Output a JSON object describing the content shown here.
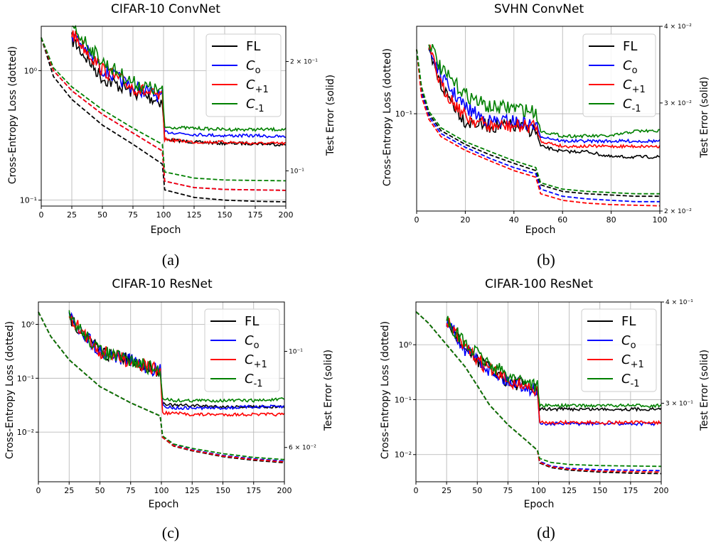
{
  "figure": {
    "panels": [
      {
        "id": "a",
        "caption": "(a)",
        "title": "CIFAR-10 ConvNet",
        "xlabel": "Epoch",
        "ylabel_left": "Cross-Entropy Loss (dotted)",
        "ylabel_right": "Test Error (solid)",
        "legend": [
          "FL",
          "C_o",
          "C_+1",
          "C_-1"
        ],
        "left_ticks": [
          {
            "label": "10⁰",
            "value": 1
          },
          {
            "label": "10⁻¹",
            "value": 0.1
          }
        ],
        "right_ticks": [
          {
            "label": "2 × 10⁻¹",
            "value": 0.2
          },
          {
            "label": "10⁻¹",
            "value": 0.1
          }
        ],
        "x_ticks": [
          "0",
          "25",
          "50",
          "75",
          "100",
          "125",
          "150",
          "175",
          "200"
        ]
      },
      {
        "id": "b",
        "caption": "(b)",
        "title": "SVHN ConvNet",
        "xlabel": "Epoch",
        "ylabel_left": "Cross-Entropy Loss (dotted)",
        "ylabel_right": "Test Error (solid)",
        "legend": [
          "FL",
          "C_o",
          "C_+1",
          "C_-1"
        ],
        "left_ticks": [
          {
            "label": "10⁻¹",
            "value": 0.1
          }
        ],
        "right_ticks": [
          {
            "label": "4 × 10⁻²",
            "value": 0.04
          },
          {
            "label": "3 × 10⁻²",
            "value": 0.03
          },
          {
            "label": "2 × 10⁻²",
            "value": 0.02
          }
        ],
        "x_ticks": [
          "0",
          "20",
          "40",
          "60",
          "80",
          "100"
        ]
      },
      {
        "id": "c",
        "caption": "(c)",
        "title": "CIFAR-10 ResNet",
        "xlabel": "Epoch",
        "ylabel_left": "Cross-Entropy Loss (dotted)",
        "ylabel_right": "Test Error (solid)",
        "legend": [
          "FL",
          "C_o",
          "C_+1",
          "C_-1"
        ],
        "left_ticks": [
          {
            "label": "10⁰",
            "value": 1
          },
          {
            "label": "10⁻¹",
            "value": 0.1
          },
          {
            "label": "10⁻²",
            "value": 0.01
          }
        ],
        "right_ticks": [
          {
            "label": "10⁻¹",
            "value": 0.1
          },
          {
            "label": "6 × 10⁻²",
            "value": 0.06
          }
        ],
        "x_ticks": [
          "0",
          "25",
          "50",
          "75",
          "100",
          "125",
          "150",
          "175",
          "200"
        ]
      },
      {
        "id": "d",
        "caption": "(d)",
        "title": "CIFAR-100 ResNet",
        "xlabel": "Epoch",
        "ylabel_left": "Cross-Entropy Loss (dotted)",
        "ylabel_right": "Test Error (solid)",
        "legend": [
          "FL",
          "C_o",
          "C_+1",
          "C_-1"
        ],
        "left_ticks": [
          {
            "label": "10⁰",
            "value": 1
          },
          {
            "label": "10⁻¹",
            "value": 0.1
          },
          {
            "label": "10⁻²",
            "value": 0.01
          }
        ],
        "right_ticks": [
          {
            "label": "4 × 10⁻¹",
            "value": 0.4
          },
          {
            "label": "3 × 10⁻¹",
            "value": 0.3
          }
        ],
        "x_ticks": [
          "0",
          "25",
          "50",
          "75",
          "100",
          "125",
          "150",
          "175",
          "200"
        ]
      }
    ]
  },
  "chart_data": [
    {
      "type": "line",
      "title": "CIFAR-10 ConvNet",
      "xlabel": "Epoch",
      "ylabel": "Cross-Entropy Loss (dotted)",
      "ylabel_right": "Test Error (solid)",
      "xlim": [
        0,
        200
      ],
      "ylim_left": [
        0.09,
        2.2
      ],
      "ylim_right": [
        0.08,
        0.25
      ],
      "yscale": "log",
      "grid": true,
      "legend_position": "top-right",
      "colors": {
        "FL": "#000000",
        "C_o": "#0000ff",
        "C_+1": "#ff0000",
        "C_-1": "#008000"
      },
      "x": [
        0,
        10,
        25,
        50,
        75,
        99,
        101,
        125,
        150,
        175,
        200
      ],
      "series": [
        {
          "name": "FL",
          "style": "dashed",
          "axis": "left",
          "values": [
            1.8,
            0.9,
            0.6,
            0.38,
            0.27,
            0.19,
            0.12,
            0.105,
            0.1,
            0.098,
            0.097
          ]
        },
        {
          "name": "C_o",
          "style": "dashed",
          "axis": "left",
          "values": [
            1.8,
            1.0,
            0.7,
            0.46,
            0.33,
            0.24,
            0.14,
            0.125,
            0.121,
            0.12,
            0.119
          ]
        },
        {
          "name": "C_+1",
          "style": "dashed",
          "axis": "left",
          "values": [
            1.8,
            1.0,
            0.7,
            0.46,
            0.33,
            0.24,
            0.14,
            0.125,
            0.121,
            0.12,
            0.119
          ]
        },
        {
          "name": "C_-1",
          "style": "dashed",
          "axis": "left",
          "values": [
            1.8,
            1.05,
            0.75,
            0.5,
            0.36,
            0.27,
            0.165,
            0.148,
            0.143,
            0.142,
            0.141
          ]
        },
        {
          "name": "FL",
          "style": "solid",
          "axis": "right",
          "values": [
            null,
            null,
            0.23,
            0.18,
            0.165,
            0.155,
            0.122,
            0.12,
            0.119,
            0.119,
            0.118
          ]
        },
        {
          "name": "C_o",
          "style": "solid",
          "axis": "right",
          "values": [
            null,
            null,
            0.24,
            0.19,
            0.17,
            0.16,
            0.128,
            0.126,
            0.125,
            0.125,
            0.124
          ]
        },
        {
          "name": "C_+1",
          "style": "solid",
          "axis": "right",
          "values": [
            null,
            null,
            0.24,
            0.19,
            0.17,
            0.158,
            0.122,
            0.12,
            0.12,
            0.119,
            0.119
          ]
        },
        {
          "name": "C_-1",
          "style": "solid",
          "axis": "right",
          "values": [
            null,
            null,
            0.25,
            0.2,
            0.175,
            0.165,
            0.132,
            0.131,
            0.13,
            0.13,
            0.13
          ]
        }
      ]
    },
    {
      "type": "line",
      "title": "SVHN ConvNet",
      "xlabel": "Epoch",
      "ylabel": "Cross-Entropy Loss (dotted)",
      "ylabel_right": "Test Error (solid)",
      "xlim": [
        0,
        100
      ],
      "ylim_left": [
        0.015,
        0.55
      ],
      "ylim_right": [
        0.02,
        0.04
      ],
      "yscale": "log",
      "grid": true,
      "legend_position": "top-right",
      "colors": {
        "FL": "#000000",
        "C_o": "#0000ff",
        "C_+1": "#ff0000",
        "C_-1": "#008000"
      },
      "x": [
        0,
        2,
        5,
        10,
        20,
        30,
        40,
        49,
        51,
        60,
        70,
        80,
        90,
        100
      ],
      "series": [
        {
          "name": "FL",
          "style": "dashed",
          "axis": "left",
          "values": [
            0.35,
            0.16,
            0.1,
            0.072,
            0.055,
            0.045,
            0.038,
            0.033,
            0.025,
            0.022,
            0.021,
            0.0205,
            0.02,
            0.02
          ]
        },
        {
          "name": "C_o",
          "style": "dashed",
          "axis": "left",
          "values": [
            0.35,
            0.15,
            0.095,
            0.068,
            0.052,
            0.042,
            0.035,
            0.031,
            0.023,
            0.02,
            0.019,
            0.0185,
            0.018,
            0.018
          ]
        },
        {
          "name": "C_+1",
          "style": "dashed",
          "axis": "left",
          "values": [
            0.35,
            0.14,
            0.09,
            0.064,
            0.049,
            0.04,
            0.033,
            0.029,
            0.021,
            0.0185,
            0.0175,
            0.017,
            0.0168,
            0.0166
          ]
        },
        {
          "name": "C_-1",
          "style": "dashed",
          "axis": "left",
          "values": [
            0.35,
            0.17,
            0.105,
            0.076,
            0.058,
            0.048,
            0.04,
            0.035,
            0.026,
            0.023,
            0.022,
            0.0215,
            0.021,
            0.021
          ]
        },
        {
          "name": "FL",
          "style": "solid",
          "axis": "right",
          "values": [
            null,
            null,
            0.036,
            0.032,
            0.028,
            0.0275,
            0.0275,
            0.027,
            0.0255,
            0.025,
            0.025,
            0.0245,
            0.0245,
            0.0245
          ]
        },
        {
          "name": "C_o",
          "style": "solid",
          "axis": "right",
          "values": [
            null,
            null,
            0.037,
            0.033,
            0.0295,
            0.028,
            0.028,
            0.0275,
            0.0265,
            0.026,
            0.026,
            0.026,
            0.026,
            0.026
          ]
        },
        {
          "name": "C_+1",
          "style": "solid",
          "axis": "right",
          "values": [
            null,
            null,
            0.037,
            0.032,
            0.0285,
            0.0275,
            0.0275,
            0.0275,
            0.026,
            0.0255,
            0.0255,
            0.0255,
            0.0255,
            0.0255
          ]
        },
        {
          "name": "C_-1",
          "style": "solid",
          "axis": "right",
          "values": [
            null,
            null,
            0.038,
            0.034,
            0.031,
            0.0295,
            0.0295,
            0.029,
            0.027,
            0.0265,
            0.0265,
            0.0265,
            0.027,
            0.027
          ]
        }
      ]
    },
    {
      "type": "line",
      "title": "CIFAR-10 ResNet",
      "xlabel": "Epoch",
      "ylabel": "Cross-Entropy Loss (dotted)",
      "ylabel_right": "Test Error (solid)",
      "xlim": [
        0,
        200
      ],
      "ylim_left": [
        0.0012,
        2.6
      ],
      "ylim_right": [
        0.05,
        0.13
      ],
      "yscale": "log",
      "grid": true,
      "legend_position": "top-right",
      "colors": {
        "FL": "#000000",
        "C_o": "#0000ff",
        "C_+1": "#ff0000",
        "C_-1": "#008000"
      },
      "x": [
        0,
        10,
        25,
        50,
        75,
        99,
        101,
        110,
        125,
        150,
        175,
        200
      ],
      "series": [
        {
          "name": "FL",
          "style": "dashed",
          "axis": "left",
          "values": [
            1.7,
            0.6,
            0.22,
            0.07,
            0.035,
            0.02,
            0.008,
            0.0055,
            0.0045,
            0.0035,
            0.003,
            0.0027
          ]
        },
        {
          "name": "C_o",
          "style": "dashed",
          "axis": "left",
          "values": [
            1.7,
            0.6,
            0.22,
            0.07,
            0.035,
            0.02,
            0.008,
            0.0057,
            0.0047,
            0.0037,
            0.0032,
            0.0029
          ]
        },
        {
          "name": "C_+1",
          "style": "dashed",
          "axis": "left",
          "values": [
            1.7,
            0.6,
            0.22,
            0.07,
            0.035,
            0.02,
            0.008,
            0.0056,
            0.0046,
            0.0036,
            0.0031,
            0.0028
          ]
        },
        {
          "name": "C_-1",
          "style": "dashed",
          "axis": "left",
          "values": [
            1.7,
            0.6,
            0.22,
            0.07,
            0.035,
            0.02,
            0.0085,
            0.006,
            0.005,
            0.004,
            0.0034,
            0.0031
          ]
        },
        {
          "name": "FL",
          "style": "solid",
          "axis": "right",
          "values": [
            null,
            null,
            0.12,
            0.1,
            0.095,
            0.09,
            0.076,
            0.075,
            0.075,
            0.0745,
            0.0745,
            0.0745
          ]
        },
        {
          "name": "C_o",
          "style": "solid",
          "axis": "right",
          "values": [
            null,
            null,
            0.12,
            0.1,
            0.095,
            0.09,
            0.075,
            0.074,
            0.074,
            0.074,
            0.0745,
            0.0745
          ]
        },
        {
          "name": "C_+1",
          "style": "solid",
          "axis": "right",
          "values": [
            null,
            null,
            0.12,
            0.1,
            0.095,
            0.09,
            0.072,
            0.072,
            0.0715,
            0.0715,
            0.0715,
            0.0715
          ]
        },
        {
          "name": "C_-1",
          "style": "solid",
          "axis": "right",
          "values": [
            null,
            null,
            0.12,
            0.1,
            0.095,
            0.09,
            0.078,
            0.077,
            0.077,
            0.077,
            0.077,
            0.0775
          ]
        }
      ]
    },
    {
      "type": "line",
      "title": "CIFAR-100 ResNet",
      "xlabel": "Epoch",
      "ylabel": "Cross-Entropy Loss (dotted)",
      "ylabel_right": "Test Error (solid)",
      "xlim": [
        0,
        200
      ],
      "ylim_left": [
        0.0032,
        6.0
      ],
      "ylim_right": [
        0.24,
        0.4
      ],
      "yscale": "log",
      "grid": true,
      "legend_position": "top-right",
      "colors": {
        "FL": "#000000",
        "C_o": "#0000ff",
        "C_+1": "#ff0000",
        "C_-1": "#008000"
      },
      "x": [
        0,
        10,
        25,
        40,
        50,
        60,
        75,
        90,
        99,
        101,
        110,
        125,
        150,
        175,
        200
      ],
      "series": [
        {
          "name": "FL",
          "style": "dashed",
          "axis": "left",
          "values": [
            4.0,
            2.5,
            1.0,
            0.4,
            0.18,
            0.08,
            0.035,
            0.018,
            0.012,
            0.007,
            0.0058,
            0.0052,
            0.0048,
            0.0046,
            0.0045
          ]
        },
        {
          "name": "C_o",
          "style": "dashed",
          "axis": "left",
          "values": [
            4.0,
            2.5,
            1.0,
            0.4,
            0.18,
            0.08,
            0.035,
            0.018,
            0.012,
            0.0075,
            0.0062,
            0.0056,
            0.0053,
            0.0052,
            0.0051
          ]
        },
        {
          "name": "C_+1",
          "style": "dashed",
          "axis": "left",
          "values": [
            4.0,
            2.5,
            1.0,
            0.4,
            0.18,
            0.08,
            0.035,
            0.018,
            0.012,
            0.0072,
            0.006,
            0.0054,
            0.005,
            0.0049,
            0.0048
          ]
        },
        {
          "name": "C_-1",
          "style": "dashed",
          "axis": "left",
          "values": [
            4.0,
            2.5,
            1.0,
            0.4,
            0.18,
            0.08,
            0.035,
            0.018,
            0.012,
            0.0085,
            0.0072,
            0.0066,
            0.0063,
            0.0062,
            0.0061
          ]
        },
        {
          "name": "FL",
          "style": "solid",
          "axis": "right",
          "values": [
            null,
            null,
            0.38,
            0.35,
            0.34,
            0.33,
            0.32,
            0.315,
            0.31,
            0.295,
            0.295,
            0.295,
            0.295,
            0.295,
            0.295
          ]
        },
        {
          "name": "C_o",
          "style": "solid",
          "axis": "right",
          "values": [
            null,
            null,
            0.38,
            0.35,
            0.34,
            0.33,
            0.32,
            0.315,
            0.31,
            0.283,
            0.283,
            0.283,
            0.283,
            0.283,
            0.283
          ]
        },
        {
          "name": "C_+1",
          "style": "solid",
          "axis": "right",
          "values": [
            null,
            null,
            0.38,
            0.35,
            0.34,
            0.33,
            0.32,
            0.315,
            0.31,
            0.284,
            0.284,
            0.284,
            0.284,
            0.284,
            0.284
          ]
        },
        {
          "name": "C_-1",
          "style": "solid",
          "axis": "right",
          "values": [
            null,
            null,
            0.38,
            0.355,
            0.345,
            0.335,
            0.325,
            0.32,
            0.315,
            0.298,
            0.298,
            0.298,
            0.298,
            0.298,
            0.298
          ]
        }
      ]
    }
  ]
}
